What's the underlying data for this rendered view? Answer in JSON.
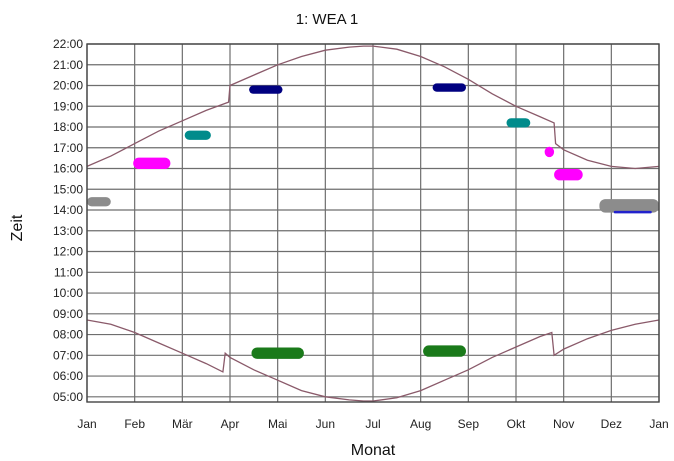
{
  "chart_data": {
    "type": "scatter",
    "title": "1: WEA 1",
    "xlabel": "Monat",
    "ylabel": "Zeit",
    "x_ticks": [
      "Jan",
      "Feb",
      "Mär",
      "Apr",
      "Mai",
      "Jun",
      "Jul",
      "Aug",
      "Sep",
      "Okt",
      "Nov",
      "Dez",
      "Jan"
    ],
    "y_ticks": [
      "22:00",
      "21:00",
      "20:00",
      "19:00",
      "18:00",
      "17:00",
      "16:00",
      "15:00",
      "14:00",
      "13:00",
      "12:00",
      "11:00",
      "10:00",
      "09:00",
      "08:00",
      "07:00",
      "06:00",
      "05:00"
    ],
    "xlim": [
      0,
      12
    ],
    "ylim_hours": [
      4.75,
      22.0
    ],
    "grid": true,
    "colors": {
      "grid": "#6e6e6e",
      "curve": "#8a5a6a",
      "gray": "#8c8c8c",
      "magenta": "#ff00ff",
      "teal": "#008b8b",
      "navy": "#000080",
      "green": "#1a7a1a",
      "blue": "#2222cc"
    },
    "sunset_curve": {
      "x": [
        0,
        0.5,
        1,
        1.5,
        2,
        2.5,
        2.97,
        3.0,
        3.5,
        4,
        4.5,
        5,
        5.5,
        5.8,
        6,
        6.5,
        7,
        7.5,
        8,
        8.5,
        9,
        9.5,
        9.8,
        9.83,
        10,
        10.5,
        11,
        11.5,
        12
      ],
      "y": [
        16.1,
        16.6,
        17.2,
        17.8,
        18.3,
        18.8,
        19.2,
        20.0,
        20.5,
        21.0,
        21.4,
        21.7,
        21.85,
        21.9,
        21.9,
        21.75,
        21.4,
        20.9,
        20.3,
        19.6,
        19.0,
        18.5,
        18.2,
        17.2,
        16.9,
        16.4,
        16.1,
        16.0,
        16.1
      ]
    },
    "sunrise_curve": {
      "x": [
        0,
        0.5,
        1,
        1.5,
        2,
        2.5,
        2.85,
        2.9,
        3.0,
        3.5,
        4,
        4.5,
        5,
        5.5,
        5.8,
        6,
        6.5,
        7,
        7.5,
        8,
        8.5,
        9,
        9.5,
        9.75,
        9.8,
        10,
        10.5,
        11,
        11.5,
        12
      ],
      "y": [
        8.7,
        8.5,
        8.1,
        7.6,
        7.1,
        6.6,
        6.2,
        7.1,
        6.9,
        6.3,
        5.8,
        5.3,
        5.0,
        4.85,
        4.8,
        4.8,
        4.95,
        5.3,
        5.8,
        6.3,
        6.9,
        7.4,
        7.9,
        8.1,
        7.0,
        7.3,
        7.8,
        8.2,
        8.5,
        8.7
      ]
    },
    "series": [
      {
        "color": "gray",
        "points": [
          {
            "x0": 0.0,
            "x1": 0.5,
            "y": 14.4,
            "h": 0.45
          }
        ]
      },
      {
        "color": "magenta",
        "points": [
          {
            "x0": 0.97,
            "x1": 1.75,
            "y": 16.25,
            "h": 0.55
          }
        ]
      },
      {
        "color": "teal",
        "points": [
          {
            "x0": 2.05,
            "x1": 2.6,
            "y": 17.6,
            "h": 0.45
          }
        ]
      },
      {
        "color": "navy",
        "points": [
          {
            "x0": 3.4,
            "x1": 4.1,
            "y": 19.8,
            "h": 0.4
          }
        ]
      },
      {
        "color": "green",
        "points": [
          {
            "x0": 3.45,
            "x1": 4.55,
            "y": 7.1,
            "h": 0.55
          }
        ]
      },
      {
        "color": "green",
        "points": [
          {
            "x0": 7.05,
            "x1": 7.95,
            "y": 7.2,
            "h": 0.55
          }
        ]
      },
      {
        "color": "navy",
        "points": [
          {
            "x0": 7.25,
            "x1": 7.95,
            "y": 19.9,
            "h": 0.4
          }
        ]
      },
      {
        "color": "teal",
        "points": [
          {
            "x0": 8.8,
            "x1": 9.3,
            "y": 18.2,
            "h": 0.45
          }
        ]
      },
      {
        "color": "magenta",
        "points": [
          {
            "x0": 9.6,
            "x1": 9.8,
            "y": 16.8,
            "h": 0.5
          }
        ]
      },
      {
        "color": "magenta",
        "points": [
          {
            "x0": 9.8,
            "x1": 10.4,
            "y": 15.7,
            "h": 0.55
          }
        ]
      },
      {
        "color": "gray",
        "points": [
          {
            "x0": 10.75,
            "x1": 12.0,
            "y": 14.2,
            "h": 0.65
          }
        ]
      },
      {
        "color": "blue",
        "points": [
          {
            "x0": 11.05,
            "x1": 11.85,
            "y": 13.9,
            "h": 0.12
          }
        ]
      }
    ]
  }
}
